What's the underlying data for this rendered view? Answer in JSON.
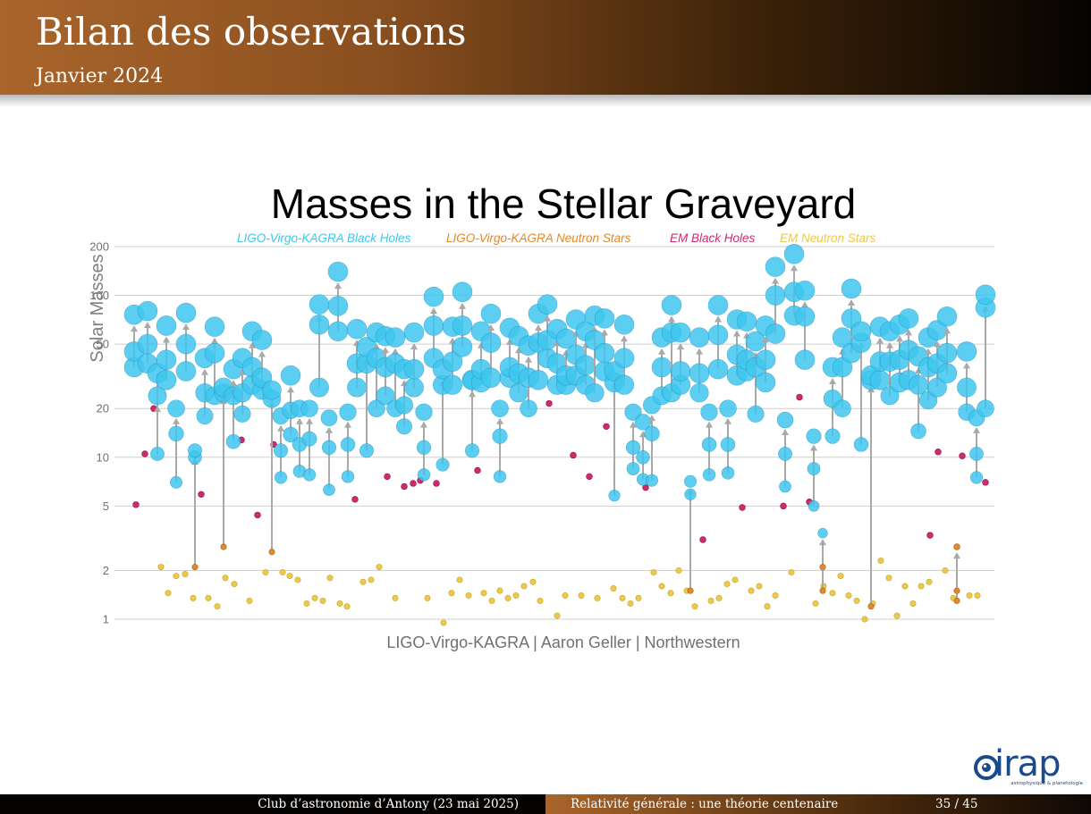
{
  "slide": {
    "title": "Bilan des observations",
    "subtitle": "Janvier 2024"
  },
  "footer": {
    "event": "Club d’astronomie d’Antony (23 mai 2025)",
    "talk": "Relativité générale : une théorie centenaire",
    "page": "35 / 45"
  },
  "logo": {
    "word": "irap",
    "tagline": "astrophysique & planétologie"
  },
  "colors": {
    "lvk_bh": "#3ec6ef",
    "lvk_ns": "#e08a2e",
    "em_bh": "#d2286e",
    "em_ns": "#ecc94b",
    "arrow": "#a9a9a9",
    "grid": "#cfcfcf"
  },
  "chart_data": {
    "type": "scatter",
    "title": "Masses in the Stellar Graveyard",
    "ylabel": "Solar Masses",
    "credit": "LIGO-Virgo-KAGRA | Aaron Geller | Northwestern",
    "yscale": "log",
    "ylim": [
      1,
      200
    ],
    "yticks": [
      1,
      2,
      5,
      10,
      20,
      50,
      100,
      200
    ],
    "yticklabels": [
      "1",
      "2",
      "5",
      "10",
      "20",
      "50",
      "100",
      "200"
    ],
    "legend_position": "top",
    "legend": [
      {
        "name": "LIGO-Virgo-KAGRA Black Holes",
        "color": "#3ec6ef"
      },
      {
        "name": "LIGO-Virgo-KAGRA Neutron Stars",
        "color": "#e08a2e"
      },
      {
        "name": "EM Black Holes",
        "color": "#d2286e"
      },
      {
        "name": "EM Neutron Stars",
        "color": "#ecc94b"
      }
    ],
    "mergers": [
      [
        150,
        36,
        45,
        76
      ],
      [
        165,
        38,
        50,
        80
      ],
      [
        176,
        10.5,
        33,
        24
      ],
      [
        186,
        30,
        40,
        65
      ],
      [
        197,
        7,
        14,
        20
      ],
      [
        208,
        34,
        50,
        78
      ],
      [
        218,
        2.1,
        10,
        11
      ],
      [
        229,
        18,
        25,
        41
      ],
      [
        240,
        24,
        44,
        64
      ],
      [
        250,
        2.8,
        25,
        27
      ],
      [
        261,
        12.5,
        24,
        35
      ],
      [
        271,
        18.5,
        25,
        41
      ],
      [
        282,
        28,
        36,
        60
      ],
      [
        293,
        26,
        31,
        53
      ],
      [
        304,
        2.6,
        23,
        26
      ],
      [
        314,
        7.5,
        11,
        18
      ],
      [
        325,
        13.8,
        19.5,
        32
      ],
      [
        335,
        8.2,
        12,
        20
      ],
      [
        346,
        7.8,
        13,
        20
      ],
      [
        357,
        27,
        66,
        88
      ],
      [
        378,
        60,
        86,
        140
      ],
      [
        368,
        6.3,
        11.5,
        17.5
      ],
      [
        389,
        7.6,
        12,
        19
      ],
      [
        399,
        27,
        38,
        62
      ],
      [
        410,
        11,
        38,
        48
      ],
      [
        421,
        20,
        41,
        59
      ],
      [
        431,
        24,
        36,
        56
      ],
      [
        442,
        20,
        38,
        55
      ],
      [
        452,
        15.5,
        21,
        35
      ],
      [
        463,
        27,
        35,
        59
      ],
      [
        474,
        7.8,
        11.5,
        19
      ],
      [
        485,
        41,
        65,
        98
      ],
      [
        495,
        9,
        28,
        35
      ],
      [
        506,
        28,
        39,
        64
      ],
      [
        517,
        48,
        65,
        105
      ],
      [
        528,
        11,
        30,
        30
      ],
      [
        538,
        29,
        35,
        60
      ],
      [
        549,
        31,
        51,
        77
      ],
      [
        559,
        7.6,
        13.5,
        20
      ],
      [
        570,
        31,
        36,
        63
      ],
      [
        580,
        25,
        33,
        56
      ],
      [
        591,
        20,
        31,
        49
      ],
      [
        602,
        30,
        51,
        77
      ],
      [
        612,
        41,
        53,
        88
      ],
      [
        623,
        28,
        38,
        62
      ],
      [
        633,
        28,
        32,
        54
      ],
      [
        644,
        32,
        43,
        71
      ],
      [
        655,
        28,
        37,
        60
      ],
      [
        665,
        25,
        53,
        75
      ],
      [
        676,
        34,
        44,
        72
      ],
      [
        687,
        5.8,
        29,
        34
      ],
      [
        698,
        28,
        41,
        66
      ],
      [
        708,
        8.5,
        11.5,
        19
      ],
      [
        719,
        7.3,
        10,
        16.5
      ],
      [
        729,
        7.2,
        14,
        21
      ],
      [
        740,
        24,
        36,
        55
      ],
      [
        751,
        25,
        59,
        87
      ],
      [
        761,
        28,
        34,
        59
      ],
      [
        772,
        1.5,
        5.9,
        7.1
      ],
      [
        782,
        25,
        33,
        55
      ],
      [
        793,
        7.8,
        12,
        19
      ],
      [
        803,
        35,
        57,
        87
      ],
      [
        814,
        8,
        12,
        20
      ],
      [
        824,
        32,
        43,
        71
      ],
      [
        835,
        34,
        40,
        69
      ],
      [
        845,
        18.5,
        36,
        52
      ],
      [
        856,
        29,
        40,
        65
      ],
      [
        867,
        58,
        100,
        150
      ],
      [
        878,
        6.6,
        10.5,
        17
      ],
      [
        888,
        75,
        105,
        180
      ],
      [
        900,
        40,
        74,
        107
      ],
      [
        910,
        5,
        8.5,
        13.5
      ],
      [
        920,
        1.5,
        2.1,
        3.4
      ],
      [
        931,
        13.5,
        23,
        36
      ],
      [
        942,
        20,
        36,
        55
      ],
      [
        952,
        44,
        72,
        110
      ],
      [
        963,
        12,
        51,
        60
      ],
      [
        974,
        1.2,
        30,
        32
      ],
      [
        984,
        30,
        39,
        64
      ],
      [
        995,
        24,
        39,
        60
      ],
      [
        1006,
        29,
        40,
        66
      ],
      [
        1016,
        30,
        46,
        72
      ],
      [
        1027,
        14.5,
        28,
        42
      ],
      [
        1038,
        22.5,
        36,
        55
      ],
      [
        1048,
        27,
        38,
        61
      ],
      [
        1059,
        33,
        44,
        74
      ],
      [
        1070,
        1.3,
        1.5,
        2.8
      ],
      [
        1081,
        19,
        27,
        45
      ],
      [
        1092,
        7.5,
        10.5,
        17.5
      ],
      [
        1102,
        20,
        84,
        101
      ]
    ],
    "em_black_holes": [
      [
        152,
        5.1
      ],
      [
        162,
        10.5
      ],
      [
        172,
        20
      ],
      [
        225,
        5.9
      ],
      [
        270,
        12.8
      ],
      [
        288,
        4.4
      ],
      [
        306,
        12
      ],
      [
        397,
        5.5
      ],
      [
        433,
        7.6
      ],
      [
        452,
        6.6
      ],
      [
        462,
        6.9
      ],
      [
        470,
        7.2
      ],
      [
        488,
        6.9
      ],
      [
        534,
        8.3
      ],
      [
        614,
        21.5
      ],
      [
        641,
        10.3
      ],
      [
        659,
        7.6
      ],
      [
        678,
        15.5
      ],
      [
        722,
        6.5
      ],
      [
        786,
        3.1
      ],
      [
        830,
        4.9
      ],
      [
        876,
        5
      ],
      [
        894,
        23.5
      ],
      [
        905,
        5.3
      ],
      [
        1040,
        3.3
      ],
      [
        1049,
        10.8
      ],
      [
        1076,
        10.2
      ],
      [
        1102,
        7
      ]
    ],
    "em_neutron_stars": [
      [
        180,
        2.1
      ],
      [
        188,
        1.45
      ],
      [
        197,
        1.85
      ],
      [
        207,
        1.9
      ],
      [
        216,
        1.35
      ],
      [
        233,
        1.35
      ],
      [
        243,
        1.2
      ],
      [
        252,
        1.8
      ],
      [
        262,
        1.65
      ],
      [
        279,
        1.3
      ],
      [
        297,
        1.95
      ],
      [
        316,
        1.95
      ],
      [
        324,
        1.85
      ],
      [
        333,
        1.75
      ],
      [
        343,
        1.25
      ],
      [
        352,
        1.35
      ],
      [
        361,
        1.3
      ],
      [
        369,
        1.8
      ],
      [
        380,
        1.25
      ],
      [
        388,
        1.2
      ],
      [
        406,
        1.7
      ],
      [
        415,
        1.75
      ],
      [
        424,
        2.1
      ],
      [
        442,
        1.35
      ],
      [
        478,
        1.35
      ],
      [
        496,
        0.95
      ],
      [
        505,
        1.45
      ],
      [
        514,
        1.75
      ],
      [
        524,
        1.4
      ],
      [
        541,
        1.45
      ],
      [
        550,
        1.3
      ],
      [
        559,
        1.5
      ],
      [
        568,
        1.35
      ],
      [
        577,
        1.4
      ],
      [
        586,
        1.6
      ],
      [
        596,
        1.7
      ],
      [
        604,
        1.3
      ],
      [
        623,
        1.05
      ],
      [
        632,
        1.4
      ],
      [
        650,
        1.4
      ],
      [
        668,
        1.35
      ],
      [
        686,
        1.55
      ],
      [
        696,
        1.35
      ],
      [
        705,
        1.25
      ],
      [
        714,
        1.35
      ],
      [
        731,
        1.95
      ],
      [
        740,
        1.6
      ],
      [
        750,
        1.45
      ],
      [
        759,
        2
      ],
      [
        768,
        1.5
      ],
      [
        777,
        1.2
      ],
      [
        795,
        1.3
      ],
      [
        804,
        1.35
      ],
      [
        813,
        1.65
      ],
      [
        822,
        1.75
      ],
      [
        840,
        1.5
      ],
      [
        849,
        1.6
      ],
      [
        858,
        1.2
      ],
      [
        867,
        1.4
      ],
      [
        885,
        1.95
      ],
      [
        912,
        1.25
      ],
      [
        921,
        1.6
      ],
      [
        931,
        1.45
      ],
      [
        940,
        1.85
      ],
      [
        949,
        1.4
      ],
      [
        958,
        1.3
      ],
      [
        967,
        1
      ],
      [
        976,
        1.25
      ],
      [
        985,
        2.3
      ],
      [
        994,
        1.8
      ],
      [
        1003,
        1.05
      ],
      [
        1012,
        1.6
      ],
      [
        1021,
        1.25
      ],
      [
        1030,
        1.6
      ],
      [
        1039,
        1.7
      ],
      [
        1057,
        2
      ],
      [
        1066,
        1.35
      ],
      [
        1084,
        1.4
      ],
      [
        1093,
        1.4
      ]
    ]
  }
}
